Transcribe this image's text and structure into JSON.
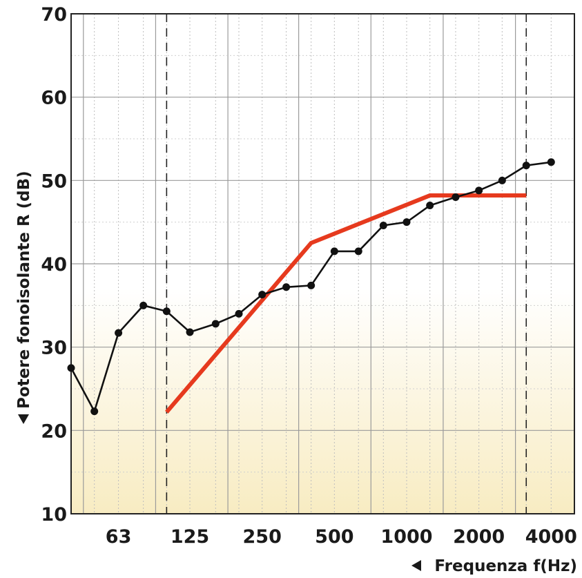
{
  "chart_data": {
    "type": "line",
    "title": "",
    "xlabel": "Frequenza f(Hz)",
    "ylabel": "Potere fonoisolante R (dB)",
    "x_scale": "log (third-octave bands)",
    "x_tick_labels": [
      "63",
      "125",
      "250",
      "500",
      "1000",
      "2000",
      "4000"
    ],
    "x_ticks": [
      63,
      125,
      250,
      500,
      1000,
      2000,
      4000
    ],
    "x_range": [
      40,
      5000
    ],
    "ylim": [
      10,
      70
    ],
    "y_ticks": [
      10,
      20,
      30,
      40,
      50,
      60,
      70
    ],
    "grid": true,
    "reference_band_limits_hz": [
      100,
      3150
    ],
    "background_gradient": [
      "#ffffff",
      "#f8ecc2"
    ],
    "series": [
      {
        "color": "#111111",
        "marker": "circle",
        "points": [
          {
            "x": 40,
            "y": 27.5
          },
          {
            "x": 50,
            "y": 22.3
          },
          {
            "x": 63,
            "y": 31.7
          },
          {
            "x": 80,
            "y": 35.0
          },
          {
            "x": 100,
            "y": 34.3
          },
          {
            "x": 125,
            "y": 31.8
          },
          {
            "x": 160,
            "y": 32.8
          },
          {
            "x": 200,
            "y": 34.0
          },
          {
            "x": 250,
            "y": 36.3
          },
          {
            "x": 315,
            "y": 37.2
          },
          {
            "x": 400,
            "y": 37.4
          },
          {
            "x": 500,
            "y": 41.5
          },
          {
            "x": 630,
            "y": 41.5
          },
          {
            "x": 800,
            "y": 44.6
          },
          {
            "x": 1000,
            "y": 45.0
          },
          {
            "x": 1250,
            "y": 47.0
          },
          {
            "x": 1600,
            "y": 48.0
          },
          {
            "x": 2000,
            "y": 48.8
          },
          {
            "x": 2500,
            "y": 50.0
          },
          {
            "x": 3150,
            "y": 51.8
          },
          {
            "x": 4000,
            "y": 52.2
          }
        ]
      },
      {
        "color": "#e63a1e",
        "marker": "none",
        "points": [
          {
            "x": 100,
            "y": 22.2
          },
          {
            "x": 400,
            "y": 42.5
          },
          {
            "x": 1250,
            "y": 48.2
          },
          {
            "x": 3150,
            "y": 48.2
          }
        ]
      }
    ]
  }
}
